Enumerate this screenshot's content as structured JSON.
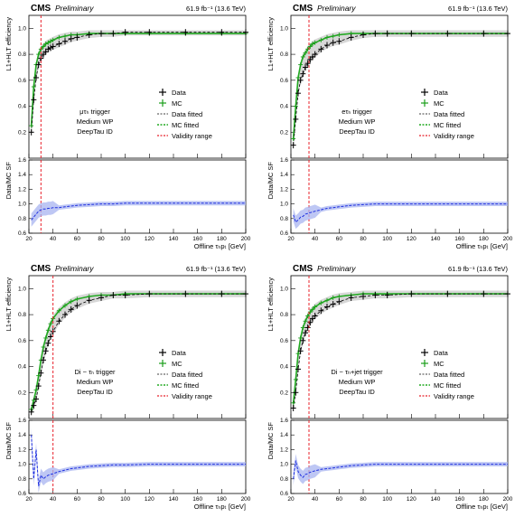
{
  "header": {
    "cms": "CMS",
    "preliminary": "Preliminary",
    "lumi": "61.9 fb⁻¹ (13.6 TeV)"
  },
  "axes": {
    "ylabel_top": "L1+HLT efficiency",
    "ylabel_bottom": "Data/MC SF",
    "xlabel": "Offline τₕpₜ [GeV]",
    "ylim_top": [
      0,
      1.1
    ],
    "ylim_bottom": [
      0.6,
      1.6
    ],
    "xlim": [
      20,
      200
    ],
    "yticks_top": [
      0.2,
      0.4,
      0.6,
      0.8,
      1.0
    ],
    "yticks_bottom": [
      0.6,
      0.8,
      1.0,
      1.2,
      1.4,
      1.6
    ],
    "xticks": [
      20,
      40,
      60,
      80,
      100,
      120,
      140,
      160,
      180,
      200
    ]
  },
  "legend": {
    "data": "Data",
    "mc": "MC",
    "data_fitted": "Data fitted",
    "mc_fitted": "MC fitted",
    "validity": "Validity range"
  },
  "colors": {
    "data": "#000000",
    "mc": "#1a9e1a",
    "mc_fit": "#22aa22",
    "validity": "#e8202a",
    "sf_line": "#2030e0",
    "sf_band": "#a8b4f0",
    "mc_band": "#b0b0b0"
  },
  "chart_data": [
    {
      "type": "line",
      "trigger": [
        "μτₕ trigger",
        "Medium WP",
        "DeepTau ID"
      ],
      "validity_x": 30,
      "x": [
        22,
        24,
        26,
        28,
        30,
        32,
        34,
        36,
        38,
        40,
        45,
        50,
        55,
        60,
        70,
        80,
        90,
        100,
        120,
        150,
        180,
        200
      ],
      "series": [
        {
          "name": "Data",
          "values": [
            0.2,
            0.45,
            0.62,
            0.72,
            0.77,
            0.8,
            0.82,
            0.84,
            0.85,
            0.86,
            0.88,
            0.9,
            0.92,
            0.93,
            0.95,
            0.96,
            0.96,
            0.97,
            0.97,
            0.97,
            0.97,
            0.97
          ]
        },
        {
          "name": "MC",
          "values": [
            0.25,
            0.55,
            0.72,
            0.8,
            0.84,
            0.86,
            0.88,
            0.89,
            0.9,
            0.91,
            0.93,
            0.94,
            0.95,
            0.95,
            0.96,
            0.96,
            0.96,
            0.96,
            0.96,
            0.96,
            0.96,
            0.96
          ]
        },
        {
          "name": "SF",
          "values": [
            0.78,
            0.82,
            0.86,
            0.9,
            0.92,
            0.93,
            0.93,
            0.94,
            0.94,
            0.95,
            0.95,
            0.96,
            0.97,
            0.98,
            0.99,
            1.0,
            1.0,
            1.01,
            1.01,
            1.01,
            1.01,
            1.01
          ]
        }
      ]
    },
    {
      "type": "line",
      "trigger": [
        "eτₕ trigger",
        "Medium WP",
        "DeepTau ID"
      ],
      "validity_x": 35,
      "x": [
        22,
        24,
        26,
        28,
        30,
        32,
        34,
        36,
        38,
        40,
        45,
        50,
        55,
        60,
        70,
        80,
        90,
        100,
        120,
        150,
        180,
        200
      ],
      "series": [
        {
          "name": "Data",
          "values": [
            0.1,
            0.3,
            0.5,
            0.6,
            0.65,
            0.7,
            0.73,
            0.76,
            0.78,
            0.8,
            0.84,
            0.87,
            0.89,
            0.9,
            0.93,
            0.95,
            0.96,
            0.96,
            0.96,
            0.96,
            0.96,
            0.96
          ]
        },
        {
          "name": "MC",
          "values": [
            0.15,
            0.4,
            0.62,
            0.72,
            0.78,
            0.81,
            0.84,
            0.86,
            0.88,
            0.89,
            0.91,
            0.93,
            0.94,
            0.95,
            0.96,
            0.96,
            0.96,
            0.96,
            0.96,
            0.96,
            0.96,
            0.96
          ]
        },
        {
          "name": "SF",
          "values": [
            0.85,
            0.75,
            0.78,
            0.82,
            0.83,
            0.86,
            0.87,
            0.88,
            0.89,
            0.9,
            0.92,
            0.94,
            0.95,
            0.96,
            0.98,
            0.99,
            1.0,
            1.0,
            1.0,
            1.0,
            1.0,
            1.0
          ]
        }
      ]
    },
    {
      "type": "line",
      "trigger": [
        "Di − τₕ trigger",
        "Medium WP",
        "DeepTau ID"
      ],
      "validity_x": 40,
      "x": [
        22,
        24,
        26,
        28,
        30,
        32,
        34,
        36,
        38,
        40,
        45,
        50,
        55,
        60,
        70,
        80,
        90,
        100,
        120,
        150,
        180,
        200
      ],
      "series": [
        {
          "name": "Data",
          "values": [
            0.05,
            0.1,
            0.15,
            0.25,
            0.35,
            0.45,
            0.52,
            0.58,
            0.63,
            0.67,
            0.75,
            0.8,
            0.84,
            0.87,
            0.91,
            0.93,
            0.95,
            0.95,
            0.96,
            0.96,
            0.96,
            0.96
          ]
        },
        {
          "name": "MC",
          "values": [
            0.07,
            0.14,
            0.22,
            0.33,
            0.45,
            0.55,
            0.62,
            0.68,
            0.73,
            0.77,
            0.83,
            0.87,
            0.9,
            0.92,
            0.94,
            0.95,
            0.95,
            0.96,
            0.96,
            0.96,
            0.96,
            0.96
          ]
        },
        {
          "name": "SF",
          "values": [
            1.4,
            0.8,
            1.2,
            0.7,
            0.85,
            0.8,
            0.83,
            0.85,
            0.86,
            0.87,
            0.9,
            0.92,
            0.94,
            0.95,
            0.97,
            0.98,
            0.99,
            0.99,
            1.0,
            1.0,
            1.0,
            1.0
          ]
        }
      ]
    },
    {
      "type": "line",
      "trigger": [
        "Di − τₕ+jet trigger",
        "Medium WP",
        "DeepTau ID"
      ],
      "validity_x": 35,
      "x": [
        22,
        24,
        26,
        28,
        30,
        32,
        34,
        36,
        38,
        40,
        45,
        50,
        55,
        60,
        70,
        80,
        90,
        100,
        120,
        150,
        180,
        200
      ],
      "series": [
        {
          "name": "Data",
          "values": [
            0.08,
            0.2,
            0.38,
            0.52,
            0.6,
            0.66,
            0.7,
            0.74,
            0.77,
            0.79,
            0.83,
            0.86,
            0.88,
            0.9,
            0.93,
            0.94,
            0.95,
            0.95,
            0.96,
            0.96,
            0.96,
            0.96
          ]
        },
        {
          "name": "MC",
          "values": [
            0.12,
            0.3,
            0.5,
            0.62,
            0.7,
            0.75,
            0.79,
            0.82,
            0.84,
            0.86,
            0.89,
            0.91,
            0.93,
            0.94,
            0.95,
            0.96,
            0.96,
            0.96,
            0.96,
            0.96,
            0.96,
            0.96
          ]
        },
        {
          "name": "SF",
          "values": [
            0.8,
            1.05,
            0.9,
            0.85,
            0.82,
            0.86,
            0.87,
            0.89,
            0.9,
            0.91,
            0.93,
            0.94,
            0.95,
            0.96,
            0.98,
            0.99,
            1.0,
            1.0,
            1.0,
            1.0,
            1.0,
            1.0
          ]
        }
      ]
    }
  ]
}
